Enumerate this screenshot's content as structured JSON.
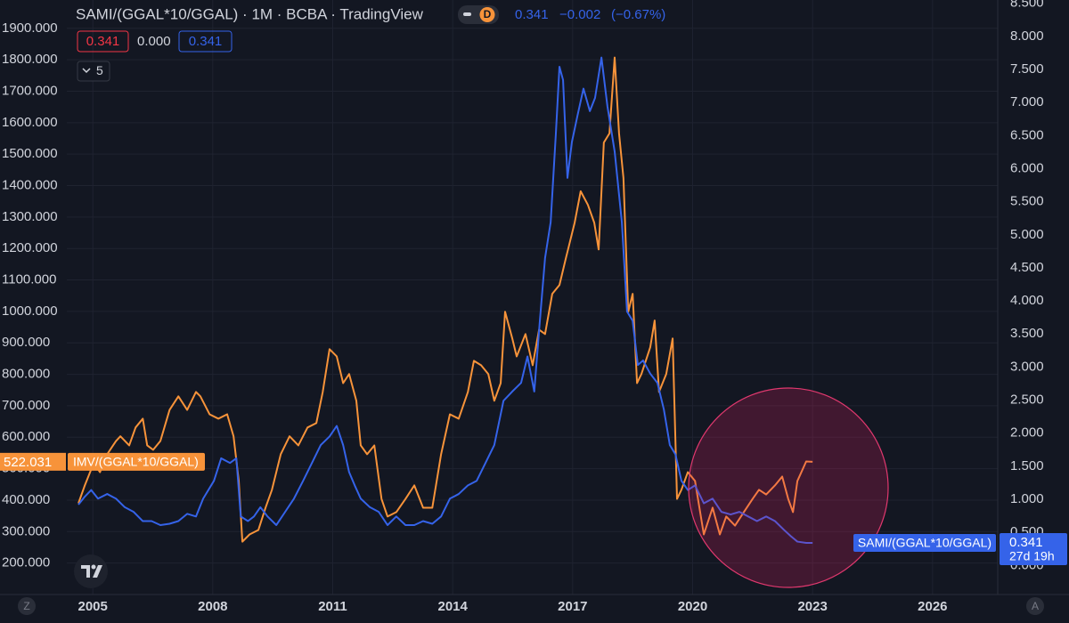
{
  "chart_data": {
    "type": "line",
    "title": "SAMI/(GGAL*10/GGAL) · 1M · BCBA · TradingView",
    "header": {
      "interval_badge": "D",
      "last": "0.341",
      "change": "−0.002",
      "change_pct": "(−0.67%)",
      "ohlc": [
        "0.341",
        "0.000",
        "0.341"
      ],
      "indicator_count": "5"
    },
    "countdown": "27d 19h",
    "buttons": [
      "Z",
      "A"
    ],
    "grid": true,
    "xlim": [
      2004.35,
      2027.63
    ],
    "xticks": [
      2005,
      2008,
      2011,
      2014,
      2017,
      2020,
      2023,
      2026
    ],
    "ylim": [
      100,
      1990
    ],
    "yticks": [
      {
        "value": 200,
        "label": "200.000"
      },
      {
        "value": 300,
        "label": "300.000"
      },
      {
        "value": 400,
        "label": "400.000"
      },
      {
        "value": 500,
        "label": "500.000"
      },
      {
        "value": 600,
        "label": "600.000"
      },
      {
        "value": 700,
        "label": "700.000"
      },
      {
        "value": 800,
        "label": "800.000"
      },
      {
        "value": 900,
        "label": "900.000"
      },
      {
        "value": 1000,
        "label": "1000.000"
      },
      {
        "value": 1100,
        "label": "1100.000"
      },
      {
        "value": 1200,
        "label": "1200.000"
      },
      {
        "value": 1300,
        "label": "1300.000"
      },
      {
        "value": 1400,
        "label": "1400.000"
      },
      {
        "value": 1500,
        "label": "1500.000"
      },
      {
        "value": 1600,
        "label": "1600.000"
      },
      {
        "value": 1700,
        "label": "1700.000"
      },
      {
        "value": 1800,
        "label": "1800.000"
      },
      {
        "value": 1900,
        "label": "1900.000"
      }
    ],
    "y2lim": [
      -0.44,
      8.55
    ],
    "y2ticks": [
      {
        "value": 0,
        "label": "0.000"
      },
      {
        "value": 0.5,
        "label": "0.500"
      },
      {
        "value": 1,
        "label": "1.000"
      },
      {
        "value": 1.5,
        "label": "1.500"
      },
      {
        "value": 2,
        "label": "2.000"
      },
      {
        "value": 2.5,
        "label": "2.500"
      },
      {
        "value": 3,
        "label": "3.000"
      },
      {
        "value": 3.5,
        "label": "3.500"
      },
      {
        "value": 4,
        "label": "4.000"
      },
      {
        "value": 4.5,
        "label": "4.500"
      },
      {
        "value": 5,
        "label": "5.000"
      },
      {
        "value": 5.5,
        "label": "5.500"
      },
      {
        "value": 6,
        "label": "6.000"
      },
      {
        "value": 6.5,
        "label": "6.500"
      },
      {
        "value": 7,
        "label": "7.000"
      },
      {
        "value": 7.5,
        "label": "7.500"
      },
      {
        "value": 8,
        "label": "8.000"
      },
      {
        "value": 8.5,
        "label": "8.500"
      }
    ],
    "series": [
      {
        "name": "IMV/(GGAL*10/GGAL)",
        "color": "#f7933a",
        "axis": "y",
        "x": [
          2004.64,
          2004.8,
          2005.02,
          2005.18,
          2005.36,
          2005.58,
          2005.69,
          2005.91,
          2006.07,
          2006.25,
          2006.36,
          2006.51,
          2006.69,
          2006.92,
          2007.14,
          2007.36,
          2007.58,
          2007.69,
          2007.92,
          2008.14,
          2008.36,
          2008.52,
          2008.65,
          2008.74,
          2008.92,
          2009.14,
          2009.32,
          2009.48,
          2009.7,
          2009.92,
          2010.14,
          2010.37,
          2010.59,
          2010.75,
          2010.92,
          2011.1,
          2011.26,
          2011.41,
          2011.59,
          2011.7,
          2011.86,
          2012.04,
          2012.22,
          2012.37,
          2012.59,
          2012.82,
          2013.04,
          2013.26,
          2013.49,
          2013.71,
          2013.93,
          2014.15,
          2014.38,
          2014.53,
          2014.71,
          2014.89,
          2015.04,
          2015.2,
          2015.31,
          2015.49,
          2015.6,
          2015.82,
          2016.0,
          2016.16,
          2016.31,
          2016.49,
          2016.67,
          2016.83,
          2017.05,
          2017.2,
          2017.38,
          2017.54,
          2017.65,
          2017.78,
          2017.92,
          2018.05,
          2018.16,
          2018.27,
          2018.39,
          2018.5,
          2018.61,
          2018.72,
          2018.94,
          2019.05,
          2019.16,
          2019.34,
          2019.5,
          2019.61,
          2019.72,
          2019.88,
          2020.06,
          2020.28,
          2020.5,
          2020.68,
          2020.84,
          2021.06,
          2021.28,
          2021.5,
          2021.66,
          2021.84,
          2022.06,
          2022.24,
          2022.39,
          2022.51,
          2022.62,
          2022.84,
          2023.0
        ],
        "values": [
          390,
          447,
          517,
          489,
          546,
          588,
          603,
          574,
          631,
          659,
          574,
          560,
          588,
          687,
          730,
          687,
          744,
          730,
          673,
          659,
          673,
          603,
          461,
          268,
          291,
          305,
          376,
          433,
          546,
          603,
          574,
          631,
          645,
          744,
          880,
          857,
          772,
          801,
          716,
          574,
          546,
          574,
          404,
          348,
          362,
          404,
          447,
          376,
          376,
          546,
          673,
          659,
          744,
          843,
          829,
          801,
          716,
          772,
          999,
          914,
          857,
          928,
          829,
          942,
          928,
          1056,
          1084,
          1169,
          1282,
          1382,
          1339,
          1282,
          1197,
          1537,
          1566,
          1807,
          1566,
          1424,
          999,
          1056,
          772,
          801,
          886,
          971,
          744,
          801,
          914,
          404,
          433,
          489,
          461,
          291,
          376,
          291,
          348,
          319,
          362,
          404,
          433,
          418,
          447,
          475,
          404,
          362,
          461,
          523,
          522.031
        ]
      },
      {
        "name": "SAMI/(GGAL*10/GGAL)",
        "color": "#3563e9",
        "axis": "y2",
        "x": [
          2004.64,
          2004.8,
          2004.96,
          2005.13,
          2005.36,
          2005.58,
          2005.8,
          2006.02,
          2006.25,
          2006.47,
          2006.69,
          2006.92,
          2007.14,
          2007.36,
          2007.58,
          2007.76,
          2008.03,
          2008.21,
          2008.43,
          2008.59,
          2008.7,
          2008.88,
          2009.03,
          2009.19,
          2009.37,
          2009.59,
          2009.81,
          2010.03,
          2010.26,
          2010.48,
          2010.7,
          2010.92,
          2011.1,
          2011.26,
          2011.41,
          2011.55,
          2011.7,
          2011.93,
          2012.15,
          2012.37,
          2012.59,
          2012.82,
          2013.04,
          2013.26,
          2013.49,
          2013.71,
          2013.93,
          2014.15,
          2014.38,
          2014.6,
          2014.82,
          2015.04,
          2015.27,
          2015.49,
          2015.71,
          2015.87,
          2016.04,
          2016.18,
          2016.31,
          2016.45,
          2016.58,
          2016.67,
          2016.76,
          2016.87,
          2016.98,
          2017.12,
          2017.27,
          2017.43,
          2017.56,
          2017.72,
          2017.87,
          2018.05,
          2018.23,
          2018.36,
          2018.5,
          2018.63,
          2018.76,
          2018.94,
          2019.12,
          2019.28,
          2019.43,
          2019.57,
          2019.72,
          2019.88,
          2020.06,
          2020.28,
          2020.5,
          2020.72,
          2020.95,
          2021.17,
          2021.39,
          2021.61,
          2021.84,
          2022.06,
          2022.28,
          2022.46,
          2022.62,
          2022.84,
          2023.0
        ],
        "values": [
          0.92,
          1.04,
          1.14,
          1.01,
          1.08,
          1.01,
          0.88,
          0.81,
          0.67,
          0.67,
          0.61,
          0.63,
          0.67,
          0.78,
          0.74,
          1.01,
          1.28,
          1.62,
          1.55,
          1.62,
          0.74,
          0.67,
          0.74,
          0.88,
          0.74,
          0.61,
          0.81,
          1.01,
          1.28,
          1.55,
          1.82,
          1.95,
          2.11,
          1.82,
          1.41,
          1.21,
          1.01,
          0.88,
          0.81,
          0.61,
          0.74,
          0.61,
          0.61,
          0.67,
          0.63,
          0.74,
          1.01,
          1.08,
          1.21,
          1.28,
          1.55,
          1.82,
          2.49,
          2.63,
          2.76,
          3.16,
          2.63,
          3.7,
          4.65,
          5.19,
          6.53,
          7.54,
          7.34,
          5.86,
          6.4,
          6.8,
          7.21,
          6.87,
          7.07,
          7.68,
          6.94,
          6.26,
          5.19,
          3.84,
          3.7,
          3.03,
          3.1,
          2.9,
          2.76,
          2.36,
          1.82,
          1.68,
          1.28,
          1.14,
          1.21,
          0.94,
          1.01,
          0.81,
          0.77,
          0.81,
          0.74,
          0.67,
          0.74,
          0.67,
          0.54,
          0.44,
          0.36,
          0.34,
          0.341
        ]
      }
    ]
  }
}
